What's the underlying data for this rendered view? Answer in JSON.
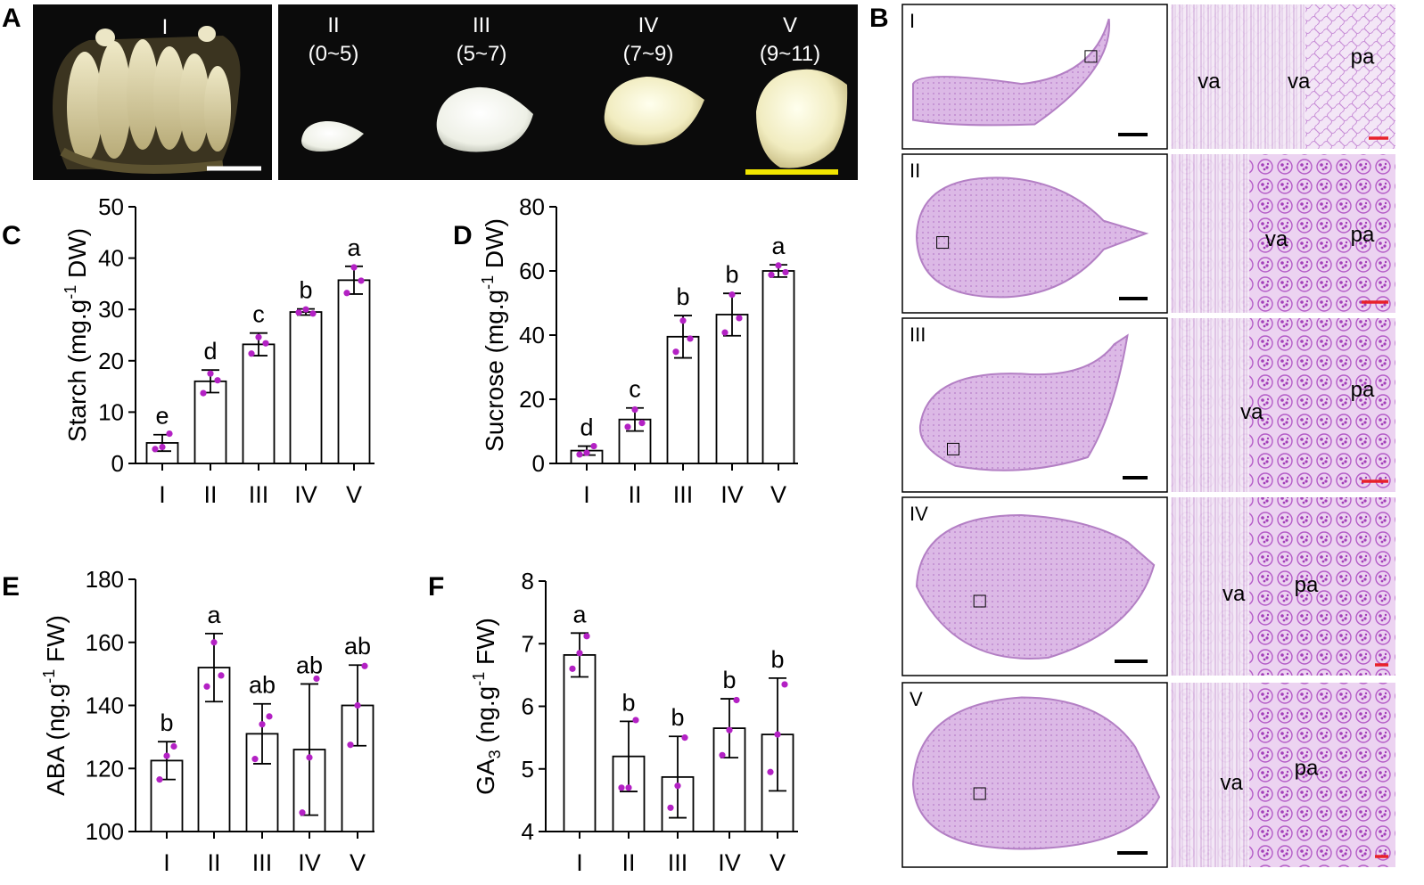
{
  "panel_letters": {
    "A": "A",
    "B": "B",
    "C": "C",
    "D": "D",
    "E": "E",
    "F": "F"
  },
  "photo_panel": {
    "stage_labels": [
      "I",
      "II",
      "III",
      "IV",
      "V"
    ],
    "stage_ranges": [
      "",
      "(0~5)",
      "(5~7)",
      "(7~9)",
      "(9~11)"
    ]
  },
  "histology_panel": {
    "rows": [
      "I",
      "II",
      "III",
      "IV",
      "V"
    ],
    "tissue_labels": {
      "vascular": "va",
      "parenchyma": "pa"
    },
    "scale_bar_colors": {
      "overview": "#000000",
      "zoom": "#e8212a"
    }
  },
  "colors": {
    "bar_fill": "#ffffff",
    "bar_stroke": "#000000",
    "dot": "#b321c4",
    "stain_light": "#e9d3ef",
    "stain_dark": "#a23db8",
    "photo_bg": "#0b0b0b",
    "scale_white": "#ffffff",
    "scale_yellow": "#f2e600"
  },
  "chart_data": [
    {
      "id": "C",
      "type": "bar",
      "categories": [
        "I",
        "II",
        "III",
        "IV",
        "V"
      ],
      "values": [
        4.0,
        16.0,
        23.2,
        29.5,
        35.7
      ],
      "errors": [
        1.6,
        2.2,
        2.2,
        0.6,
        2.7
      ],
      "points": [
        [
          2.8,
          3.2,
          5.8
        ],
        [
          13.7,
          17.5,
          16.2
        ],
        [
          21.4,
          24.6,
          23.4
        ],
        [
          29.4,
          30.0,
          29.2
        ],
        [
          33.2,
          38.2,
          35.6
        ]
      ],
      "letters": [
        "e",
        "d",
        "c",
        "b",
        "a"
      ],
      "ylabel_main": "Starch (mg.g",
      "ylabel_sup": "-1",
      "ylabel_end": " DW)",
      "ylim": [
        0,
        50
      ],
      "yticks": [
        0,
        10,
        20,
        30,
        40,
        50
      ]
    },
    {
      "id": "D",
      "type": "bar",
      "categories": [
        "I",
        "II",
        "III",
        "IV",
        "V"
      ],
      "values": [
        4.0,
        13.7,
        39.5,
        46.4,
        60.0
      ],
      "errors": [
        1.4,
        3.6,
        6.6,
        6.6,
        1.9
      ],
      "points": [
        [
          2.8,
          3.3,
          5.4
        ],
        [
          11.4,
          16.8,
          12.6
        ],
        [
          34.8,
          44.5,
          38.9
        ],
        [
          40.8,
          52.6,
          45.3
        ],
        [
          58.8,
          61.7,
          59.6
        ]
      ],
      "letters": [
        "d",
        "c",
        "b",
        "b",
        "a"
      ],
      "ylabel_main": "Sucrose (mg.g",
      "ylabel_sup": "-1",
      "ylabel_end": " DW)",
      "ylim": [
        0,
        80
      ],
      "yticks": [
        0,
        20,
        40,
        60,
        80
      ]
    },
    {
      "id": "E",
      "type": "bar",
      "categories": [
        "I",
        "II",
        "III",
        "IV",
        "V"
      ],
      "values": [
        122.5,
        152.0,
        131.0,
        126.0,
        140.0
      ],
      "errors": [
        6.0,
        10.8,
        9.5,
        20.8,
        12.8
      ],
      "points": [
        [
          116.5,
          124.0,
          127.0
        ],
        [
          146.0,
          160.0,
          149.5
        ],
        [
          123.0,
          134.0,
          136.5
        ],
        [
          106.0,
          123.5,
          148.5
        ],
        [
          127.5,
          140.0,
          152.5
        ]
      ],
      "letters": [
        "b",
        "a",
        "ab",
        "ab",
        "ab"
      ],
      "ylabel_main": "ABA (ng.g",
      "ylabel_sup": "-1",
      "ylabel_end": " FW)",
      "ylim": [
        100,
        180
      ],
      "yticks": [
        100,
        120,
        140,
        160,
        180
      ]
    },
    {
      "id": "F",
      "type": "bar",
      "categories": [
        "I",
        "II",
        "III",
        "IV",
        "V"
      ],
      "values": [
        6.82,
        5.2,
        4.87,
        5.65,
        5.55
      ],
      "errors": [
        0.35,
        0.56,
        0.65,
        0.47,
        0.9
      ],
      "points": [
        [
          6.6,
          6.85,
          7.12
        ],
        [
          4.7,
          4.7,
          5.78
        ],
        [
          4.38,
          4.73,
          5.5
        ],
        [
          5.22,
          5.62,
          6.1
        ],
        [
          4.95,
          5.55,
          6.35
        ]
      ],
      "letters": [
        "a",
        "b",
        "b",
        "b",
        "b"
      ],
      "ylabel_main": "GA",
      "ylabel_sub": "3",
      "ylabel_end": " (ng.g",
      "ylabel_sup": "-1",
      "ylabel_end2": " FW)",
      "ylim": [
        4,
        8
      ],
      "yticks": [
        4,
        5,
        6,
        7,
        8
      ]
    }
  ]
}
